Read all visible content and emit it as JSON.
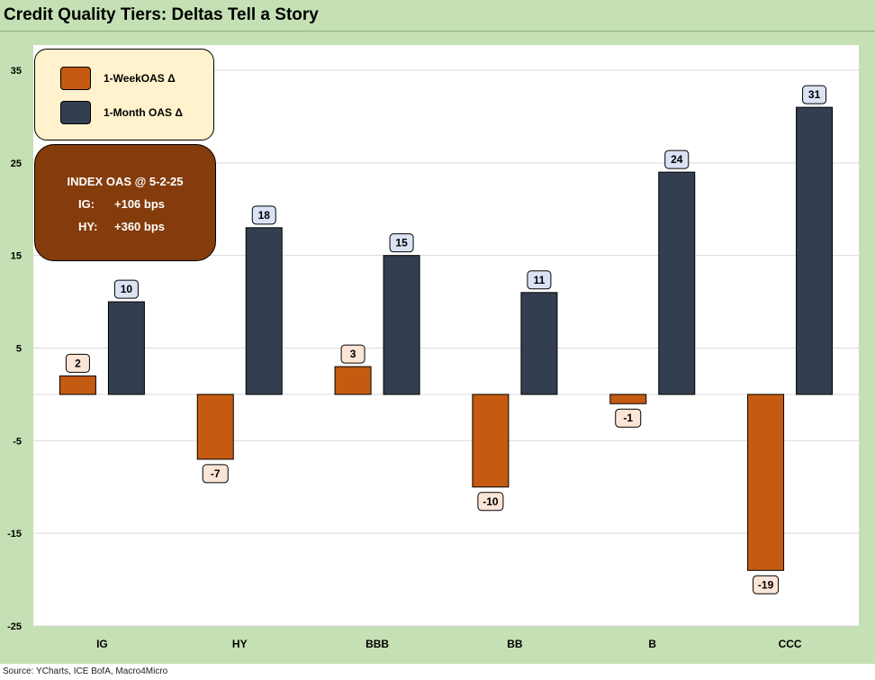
{
  "title": "Credit Quality Tiers: Deltas Tell a Story",
  "source": "Source: YCharts, ICE BofA, Macro4Micro",
  "legend": {
    "items": [
      {
        "label": "1-WeekOAS Δ",
        "color": "#c55a11"
      },
      {
        "label": "1-Month OAS Δ",
        "color": "#333f50"
      }
    ]
  },
  "note": {
    "title": "INDEX OAS @ 5-2-25",
    "rows": [
      {
        "label": "IG:",
        "value": "+106 bps"
      },
      {
        "label": "HY:",
        "value": "+360 bps"
      }
    ]
  },
  "chart_data": {
    "type": "bar",
    "categories": [
      "IG",
      "HY",
      "BBB",
      "BB",
      "B",
      "CCC"
    ],
    "series": [
      {
        "name": "1-WeekOAS Δ",
        "values": [
          2,
          -7,
          3,
          -10,
          -1,
          -19
        ],
        "color": "#c55a11"
      },
      {
        "name": "1-Month OAS Δ",
        "values": [
          10,
          18,
          15,
          11,
          24,
          31
        ],
        "color": "#333f50"
      }
    ],
    "yticks": [
      35,
      25,
      15,
      5,
      -5,
      -15,
      -25
    ],
    "ylim": [
      -25,
      35
    ],
    "grid": true,
    "legend_position": "top-left"
  }
}
